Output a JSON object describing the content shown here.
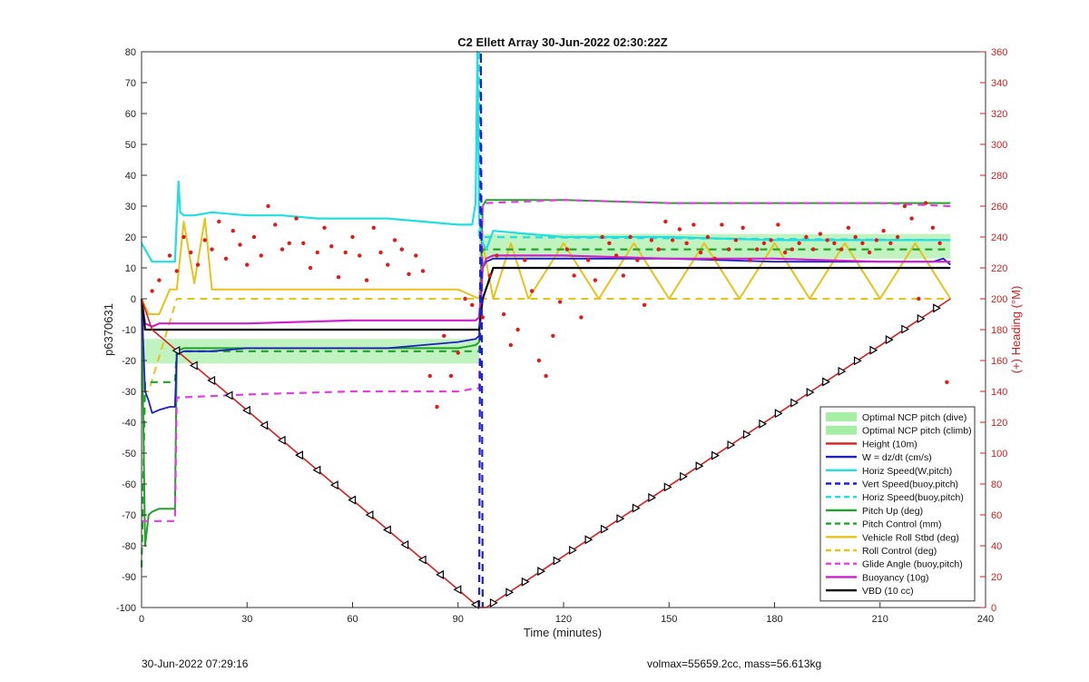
{
  "chart_data": {
    "type": "line",
    "title": "C2 Ellett Array 30-Jun-2022 02:30:22Z",
    "xlabel": "Time (minutes)",
    "ylabel": "p6370631",
    "ylabel_right": "(+) Heading (°M)",
    "xlim": [
      0,
      240
    ],
    "ylim": [
      -100,
      80
    ],
    "ylim_right": [
      0,
      360
    ],
    "x_ticks": [
      0,
      30,
      60,
      90,
      120,
      150,
      180,
      210,
      240
    ],
    "y_ticks": [
      -100,
      -90,
      -80,
      -70,
      -60,
      -50,
      -40,
      -30,
      -20,
      -10,
      0,
      10,
      20,
      30,
      40,
      50,
      60,
      70,
      80
    ],
    "y_ticks_right": [
      0,
      20,
      40,
      60,
      80,
      100,
      120,
      140,
      160,
      180,
      200,
      220,
      240,
      260,
      280,
      300,
      320,
      340,
      360
    ],
    "grid": false,
    "legend_position": "bottom-right",
    "colors": {
      "height": "#d42020",
      "w": "#1f1fbf",
      "horiz": "#22dede",
      "vert_buoy": "#1f1fd6",
      "pitch_up": "#22a22a",
      "vehicle_roll": "#e6c21a",
      "glide": "#e040e0",
      "buoyancy": "#cc22cc",
      "vbd": "#000000",
      "ncp": "#a6eea6",
      "heading": "#dd1c1c"
    },
    "bands": [
      {
        "name": "Optimal NCP pitch (dive)",
        "x": [
          0,
          96
        ],
        "y": [
          -21,
          -13
        ]
      },
      {
        "name": "Optimal NCP pitch (climb)",
        "x": [
          96,
          230
        ],
        "y": [
          13,
          21
        ]
      }
    ],
    "series": [
      {
        "name": "Height (10m)",
        "style": "solid",
        "x": [
          0,
          3,
          96,
          98,
          230
        ],
        "y": [
          0,
          -10,
          -100,
          -100,
          0
        ]
      },
      {
        "name": "W = dz/dt (cm/s)",
        "style": "solid",
        "x": [
          0,
          1,
          2,
          3,
          5,
          8,
          9.5,
          10,
          12,
          20,
          30,
          40,
          50,
          60,
          70,
          80,
          90,
          95,
          96,
          97,
          98,
          100,
          105,
          120,
          150,
          180,
          210,
          215,
          225,
          228,
          230
        ],
        "y": [
          0,
          -30,
          -33,
          -37,
          -36,
          -35,
          -35,
          -18,
          -17,
          -17,
          -16,
          -16,
          -16,
          -16,
          -16,
          -15,
          -14,
          -13,
          -12,
          10,
          12,
          13,
          13,
          13,
          13,
          12,
          12,
          12,
          12,
          13,
          11
        ]
      },
      {
        "name": "Horiz Speed(W,pitch)",
        "style": "solid",
        "x": [
          0,
          3,
          8,
          9.5,
          10.5,
          11,
          12,
          15,
          20,
          30,
          40,
          50,
          60,
          70,
          80,
          90,
          94,
          95,
          95.5,
          96,
          97,
          98,
          100,
          110,
          120,
          150,
          180,
          210,
          225,
          230
        ],
        "y": [
          18,
          12,
          12,
          12,
          38,
          28,
          27,
          27,
          28,
          27,
          27,
          26,
          26,
          26,
          25,
          24,
          24,
          31,
          80,
          25,
          18,
          16,
          22,
          21,
          20,
          20,
          19,
          19,
          19,
          19
        ]
      },
      {
        "name": "Vert Speed(buoy,pitch)",
        "style": "dashed",
        "x": [
          96,
          96.5,
          97
        ],
        "y": [
          -100,
          80,
          -100
        ]
      },
      {
        "name": "Horiz Speed(buoy,pitch)",
        "style": "dashed",
        "x": [
          96,
          96,
          97,
          230
        ],
        "y": [
          80,
          20,
          20,
          19
        ]
      },
      {
        "name": "Pitch Up (deg)",
        "style": "solid",
        "x": [
          0,
          1,
          2,
          3,
          5,
          8,
          9.5,
          10,
          12,
          30,
          50,
          70,
          90,
          95,
          96,
          97,
          98,
          120,
          150,
          180,
          210,
          230
        ],
        "y": [
          0,
          -80,
          -70,
          -69,
          -68,
          -68,
          -68,
          -17,
          -16,
          -16,
          -16,
          -16,
          -16,
          -15,
          -14,
          30,
          32,
          32,
          31,
          31,
          31,
          31
        ]
      },
      {
        "name": "Pitch Control (mm)",
        "style": "dashed",
        "x": [
          0,
          1,
          9.5,
          10,
          96,
          97,
          230
        ],
        "y": [
          -87,
          -27,
          -27,
          -17,
          -17,
          16,
          16
        ]
      },
      {
        "name": "Vehicle Roll Stbd (deg)",
        "style": "solid",
        "x": [
          0,
          2,
          5,
          8,
          10,
          12,
          15,
          18,
          20,
          30,
          40,
          50,
          60,
          70,
          80,
          90,
          96,
          97,
          100,
          105,
          110,
          120,
          130,
          140,
          150,
          160,
          170,
          180,
          190,
          200,
          210,
          220,
          230
        ],
        "y": [
          0,
          -5,
          -5,
          3,
          3,
          25,
          5,
          26,
          3,
          3,
          3,
          3,
          3,
          3,
          3,
          3,
          0,
          18,
          0,
          18,
          0,
          18,
          0,
          18,
          0,
          18,
          0,
          18,
          0,
          18,
          0,
          18,
          0
        ]
      },
      {
        "name": "Roll Control (deg)",
        "style": "dashed",
        "x": [
          0,
          2,
          10,
          30,
          50,
          70,
          90,
          96,
          97,
          230
        ],
        "y": [
          -30,
          -30,
          0,
          0,
          0,
          0,
          0,
          0,
          0,
          0
        ]
      },
      {
        "name": "Glide Angle (buoy,pitch)",
        "style": "dashed",
        "x": [
          0,
          2,
          9.5,
          10,
          30,
          60,
          90,
          95,
          96,
          97,
          98,
          120,
          150,
          180,
          210,
          230
        ],
        "y": [
          -72,
          -72,
          -72,
          -32,
          -31,
          -30,
          -30,
          -29,
          -29,
          31,
          31,
          32,
          31,
          31,
          31,
          30
        ]
      },
      {
        "name": "Buoyancy (10g)",
        "style": "solid",
        "x": [
          0,
          1,
          3,
          5,
          10,
          30,
          60,
          90,
          95,
          96,
          97,
          98,
          100,
          120,
          150,
          180,
          210,
          230
        ],
        "y": [
          0,
          -8,
          -9,
          -8,
          -8,
          -8,
          -7,
          -7,
          -7,
          -6,
          10,
          13,
          14,
          14,
          13,
          13,
          12,
          12
        ]
      },
      {
        "name": "VBD (10 cc)",
        "style": "solid",
        "x": [
          0,
          1,
          5,
          10,
          30,
          60,
          90,
          95,
          96,
          97,
          100,
          120,
          150,
          180,
          210,
          230
        ],
        "y": [
          0,
          -10,
          -10,
          -10,
          -10,
          -10,
          -10,
          -10,
          -10,
          0,
          10,
          10,
          10,
          10,
          10,
          10
        ]
      },
      {
        "name": "Heading",
        "style": "dots",
        "axis": "right",
        "x": [
          3,
          5,
          8,
          10,
          12,
          14,
          16,
          18,
          20,
          22,
          24,
          26,
          28,
          30,
          32,
          34,
          36,
          38,
          40,
          42,
          44,
          46,
          48,
          50,
          52,
          54,
          56,
          58,
          60,
          62,
          64,
          66,
          68,
          70,
          72,
          74,
          76,
          78,
          80,
          82,
          84,
          86,
          88,
          90,
          92,
          94,
          97,
          99,
          101,
          103,
          105,
          107,
          109,
          111,
          113,
          115,
          117,
          119,
          121,
          123,
          125,
          127,
          129,
          131,
          133,
          135,
          137,
          139,
          141,
          143,
          145,
          147,
          149,
          151,
          153,
          155,
          157,
          159,
          161,
          163,
          165,
          167,
          169,
          171,
          173,
          175,
          177,
          179,
          181,
          183,
          185,
          187,
          189,
          191,
          193,
          195,
          197,
          199,
          201,
          203,
          205,
          207,
          209,
          211,
          213,
          215,
          217,
          219,
          221,
          223,
          225,
          227,
          229
        ],
        "y": [
          205,
          212,
          228,
          218,
          240,
          230,
          222,
          238,
          232,
          250,
          226,
          244,
          235,
          222,
          240,
          228,
          260,
          248,
          232,
          236,
          252,
          236,
          220,
          230,
          246,
          234,
          214,
          230,
          240,
          228,
          212,
          246,
          230,
          222,
          238,
          232,
          216,
          228,
          218,
          150,
          130,
          176,
          150,
          165,
          200,
          196,
          188,
          215,
          228,
          190,
          170,
          180,
          225,
          205,
          160,
          150,
          176,
          198,
          232,
          215,
          188,
          225,
          212,
          240,
          236,
          228,
          215,
          240,
          225,
          196,
          238,
          232,
          250,
          238,
          245,
          236,
          248,
          230,
          240,
          226,
          248,
          232,
          238,
          246,
          225,
          232,
          236,
          238,
          248,
          230,
          232,
          236,
          240,
          232,
          242,
          238,
          236,
          232,
          246,
          240,
          236,
          230,
          238,
          244,
          236,
          240,
          260,
          252,
          200,
          262,
          246,
          236,
          146
        ]
      }
    ],
    "legend_entries": [
      "Optimal NCP pitch (dive)",
      "Optimal NCP pitch (climb)",
      "Height (10m)",
      "W = dz/dt (cm/s)",
      "Horiz Speed(W,pitch)",
      "Vert Speed(buoy,pitch)",
      "Horiz Speed(buoy,pitch)",
      "Pitch Up (deg)",
      "Pitch Control (mm)",
      "Vehicle Roll Stbd (deg)",
      "Roll Control (deg)",
      "Glide Angle (buoy,pitch)",
      "Buoyancy (10g)",
      "VBD (10 cc)"
    ]
  },
  "footer": {
    "left": "30-Jun-2022 07:29:16",
    "right": "volmax=55659.2cc, mass=56.613kg"
  }
}
